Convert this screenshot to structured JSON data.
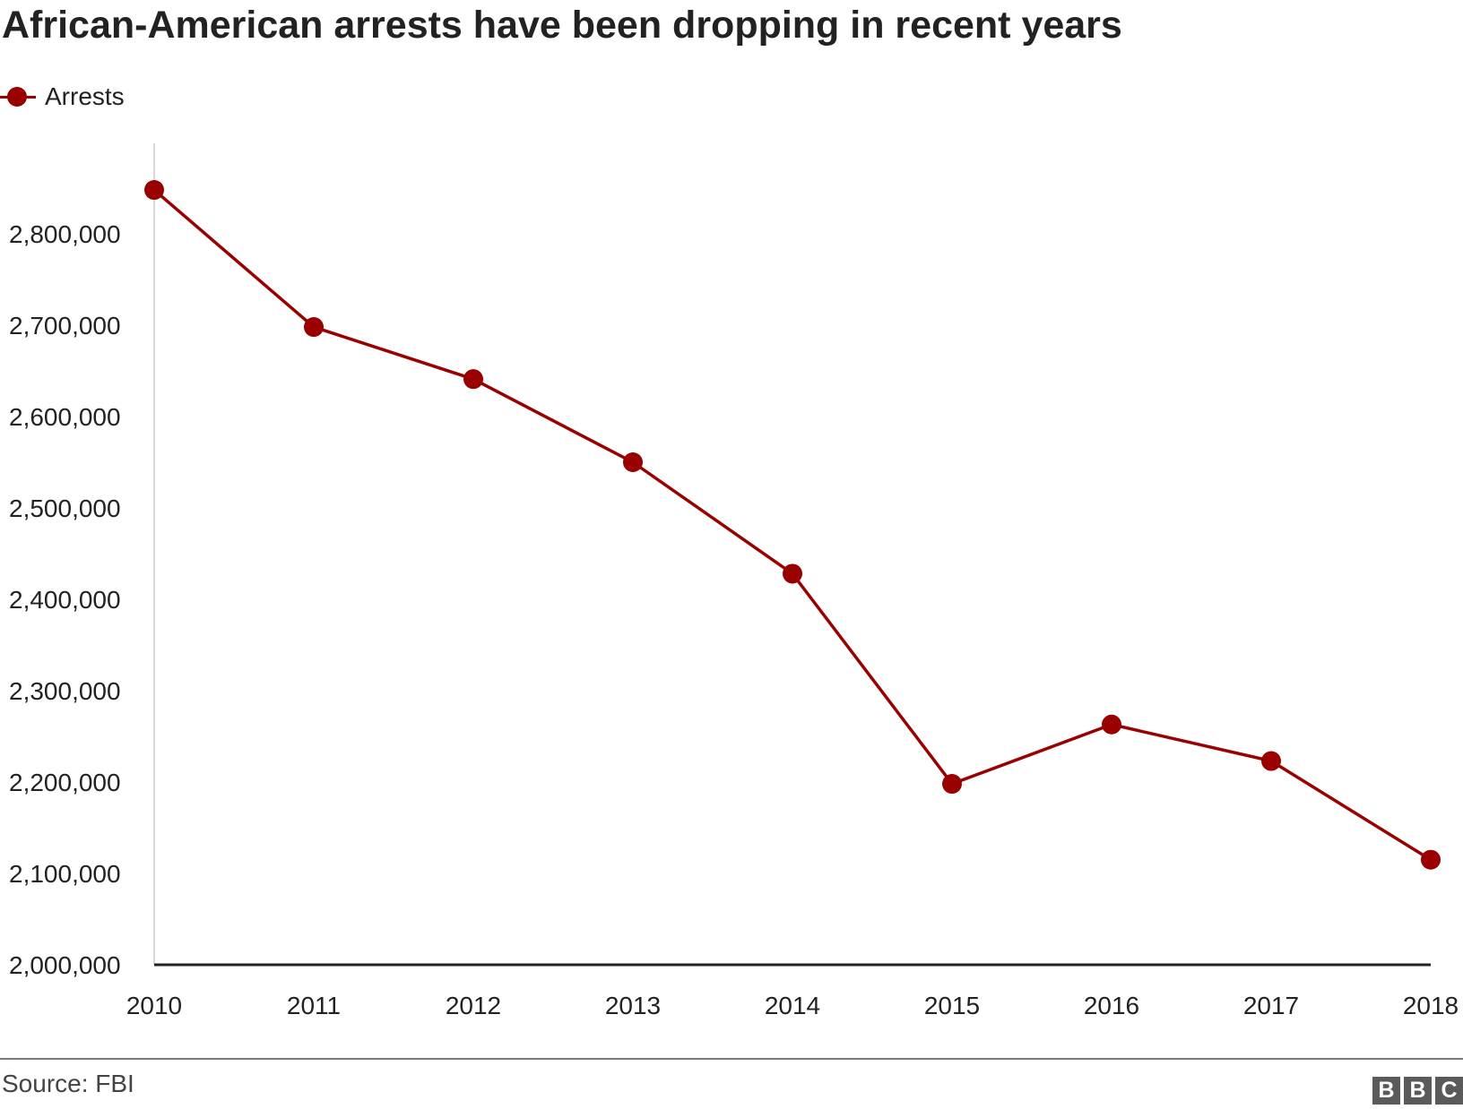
{
  "title": "African-American arrests have been dropping in recent years",
  "legend": {
    "label": "Arrests",
    "color": "#990000"
  },
  "chart_data": {
    "type": "line",
    "title": "African-American arrests have been dropping in recent years",
    "categories": [
      "2010",
      "2011",
      "2012",
      "2013",
      "2014",
      "2015",
      "2016",
      "2017",
      "2018"
    ],
    "series": [
      {
        "name": "Arrests",
        "values": [
          2848000,
          2698000,
          2641000,
          2550000,
          2428000,
          2198000,
          2263000,
          2223000,
          2115000
        ]
      }
    ],
    "y_ticks": [
      2000000,
      2100000,
      2200000,
      2300000,
      2400000,
      2500000,
      2600000,
      2700000,
      2800000
    ],
    "y_tick_labels": [
      "2,000,000",
      "2,100,000",
      "2,200,000",
      "2,300,000",
      "2,400,000",
      "2,500,000",
      "2,600,000",
      "2,700,000",
      "2,800,000"
    ],
    "ylim": [
      2000000,
      2900000
    ],
    "grid": false,
    "legend_position": "top-left",
    "line_color": "#990000"
  },
  "source": "Source: FBI",
  "logo": [
    "B",
    "B",
    "C"
  ]
}
